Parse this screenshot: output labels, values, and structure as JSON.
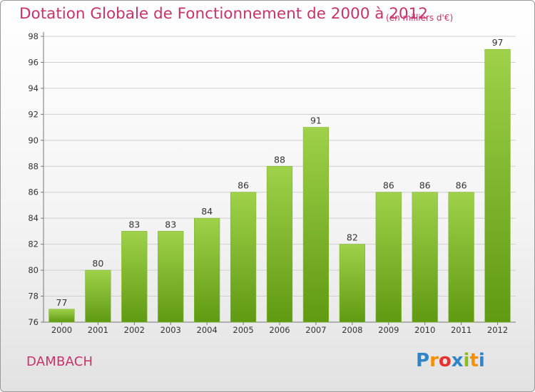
{
  "header": {
    "title": "Dotation Globale de Fonctionnement de 2000 à 2012",
    "subtitle": "(en milliers d'€)"
  },
  "footer": {
    "commune": "DAMBACH",
    "logo_letters": [
      {
        "char": "P",
        "color": "#2e86c8"
      },
      {
        "char": "r",
        "color": "#f39200"
      },
      {
        "char": "o",
        "color": "#e6312e"
      },
      {
        "char": "x",
        "color": "#2e86c8"
      },
      {
        "char": "i",
        "color": "#8bbd1e"
      },
      {
        "char": "t",
        "color": "#f39200"
      },
      {
        "char": "i",
        "color": "#2e86c8"
      }
    ]
  },
  "colors": {
    "bar_top": "#9fd14a",
    "bar_bottom": "#5f9a12",
    "grid": "#cfcfcf",
    "axis": "#777777",
    "title": "#c8326a"
  },
  "chart_data": {
    "type": "bar",
    "title": "Dotation Globale de Fonctionnement de 2000 à 2012",
    "subtitle": "(en milliers d'€)",
    "xlabel": "",
    "ylabel": "",
    "categories": [
      "2000",
      "2001",
      "2002",
      "2003",
      "2004",
      "2005",
      "2006",
      "2007",
      "2008",
      "2009",
      "2010",
      "2011",
      "2012"
    ],
    "values": [
      77,
      80,
      83,
      83,
      84,
      86,
      88,
      91,
      82,
      86,
      86,
      86,
      97
    ],
    "ylim": [
      76,
      98
    ],
    "yticks": [
      76,
      78,
      80,
      82,
      84,
      86,
      88,
      90,
      92,
      94,
      96,
      98
    ],
    "grid": true,
    "legend": "none"
  }
}
